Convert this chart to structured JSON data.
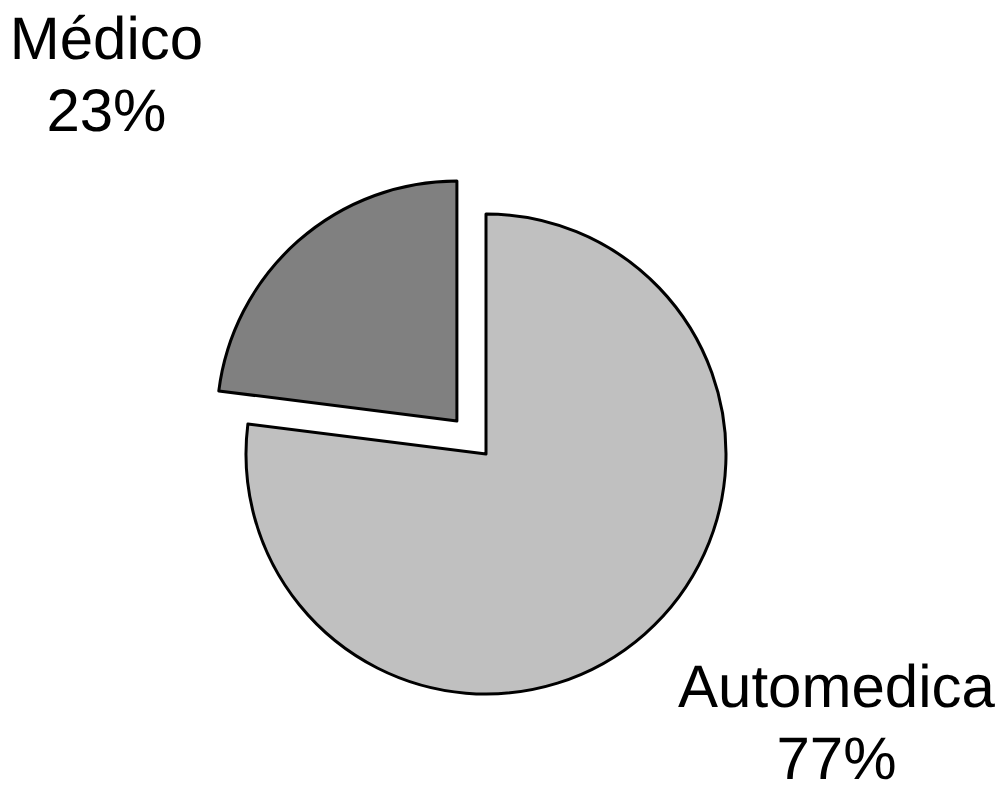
{
  "chart_data": {
    "type": "pie",
    "categories": [
      "Automedica",
      "Médico"
    ],
    "values": [
      77,
      23
    ],
    "colors": [
      "#c0c0c0",
      "#808080"
    ],
    "value_labels": [
      "77%",
      "23%"
    ]
  }
}
